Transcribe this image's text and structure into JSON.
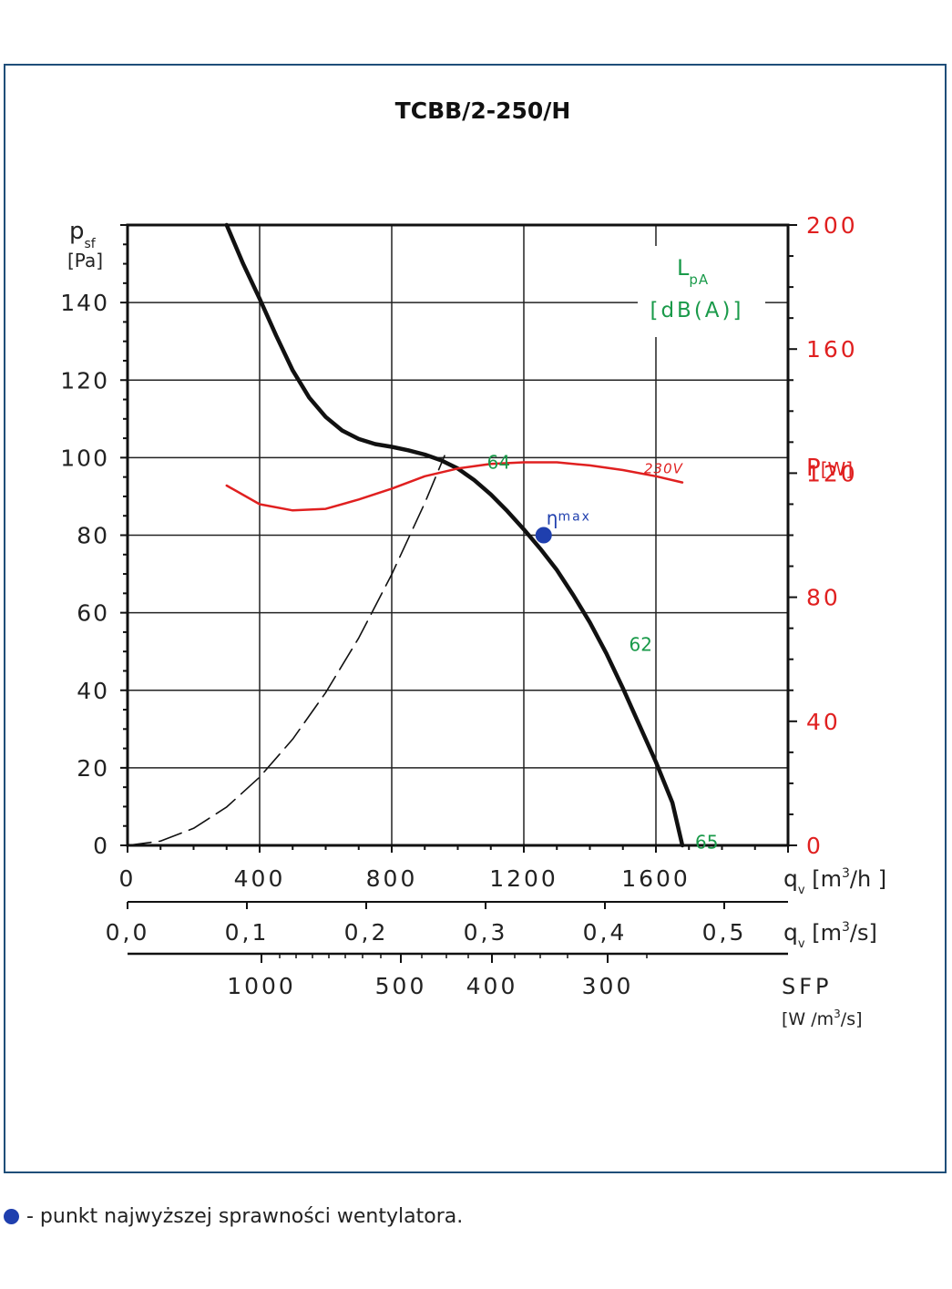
{
  "chart_data": {
    "type": "line",
    "title": "TCBB/2-250/H",
    "y_axis": {
      "symbol": "p",
      "sub": "sf",
      "unit": "[Pa]",
      "range": [
        0,
        160
      ],
      "ticks": [
        "0",
        "20",
        "40",
        "60",
        "80",
        "100",
        "120",
        "140"
      ]
    },
    "y2_axis": {
      "symbol": "P",
      "unit": "[W]",
      "range": [
        0,
        200
      ],
      "ticks": [
        "0",
        "40",
        "80",
        "120",
        "160",
        "200"
      ]
    },
    "x_axis": {
      "symbol": "q",
      "sub": "v",
      "unit_pre": "[m",
      "unit_sup": "3",
      "unit_post": "/h ]",
      "range": [
        0,
        2000
      ],
      "ticks": [
        "0",
        "400",
        "800",
        "1200",
        "1600"
      ]
    },
    "x2_axis": {
      "symbol": "q",
      "sub": "v",
      "unit_pre": "[m",
      "unit_sup": "3",
      "unit_post": "/s]",
      "ticks": [
        "0,0",
        "0,1",
        "0,2",
        "0,3",
        "0,4",
        "0,5"
      ]
    },
    "x3_axis": {
      "label": "SFP",
      "unit_pre": "[W /m",
      "unit_sup": "3",
      "unit_post": "/s]",
      "ticks": [
        "1000",
        "500",
        "400",
        "300"
      ]
    },
    "noise_label": {
      "symbol": "L",
      "sub": "pA",
      "unit": "[dB(A)]"
    },
    "eta_label": {
      "symbol": "η",
      "sup": "max"
    },
    "series": [
      {
        "role": "pressure",
        "color": "#111111",
        "x": [
          300,
          350,
          400,
          450,
          500,
          550,
          600,
          650,
          700,
          750,
          800,
          850,
          900,
          950,
          1000,
          1050,
          1100,
          1150,
          1200,
          1250,
          1300,
          1350,
          1400,
          1450,
          1500,
          1550,
          1600,
          1650,
          1680
        ],
        "y": [
          160,
          150,
          141,
          131.5,
          122.5,
          115.5,
          110.5,
          107,
          104.8,
          103.5,
          102.8,
          101.9,
          100.8,
          99.3,
          97.2,
          94.2,
          90.5,
          86.2,
          81.5,
          76.5,
          71,
          64.5,
          57.5,
          49.5,
          40.5,
          31,
          21.5,
          11,
          0
        ]
      },
      {
        "role": "power",
        "name": "230V",
        "color": "#e02020",
        "x": [
          300,
          400,
          500,
          600,
          700,
          800,
          900,
          1000,
          1100,
          1200,
          1300,
          1400,
          1500,
          1600,
          1680
        ],
        "y": [
          116,
          110,
          108,
          108.5,
          111.5,
          115,
          119,
          121.5,
          123,
          123.5,
          123.5,
          122.5,
          121,
          119,
          117
        ]
      },
      {
        "role": "system",
        "dashed": true,
        "color": "#111111",
        "x": [
          0,
          100,
          200,
          300,
          400,
          500,
          600,
          700,
          800,
          900,
          960
        ],
        "y": [
          0,
          1.1,
          4.4,
          9.9,
          17.6,
          27.4,
          39.4,
          53.5,
          69.9,
          88.3,
          100.5
        ]
      }
    ],
    "noise_points": [
      {
        "label": "64",
        "x": 1050,
        "y": 99
      },
      {
        "label": "62",
        "x": 1480,
        "y": 52
      },
      {
        "label": "65",
        "x": 1680,
        "y": 1
      }
    ],
    "eta_max_point": {
      "x": 1260,
      "y": 80
    },
    "grid": true
  },
  "footnote": {
    "text": "- punkt najwyższej sprawności wentylatora."
  },
  "colors": {
    "frame": "#1f4e79",
    "pressure": "#111111",
    "power": "#e02020",
    "noise": "#1a9a4a",
    "eta": "#1f3fae"
  }
}
